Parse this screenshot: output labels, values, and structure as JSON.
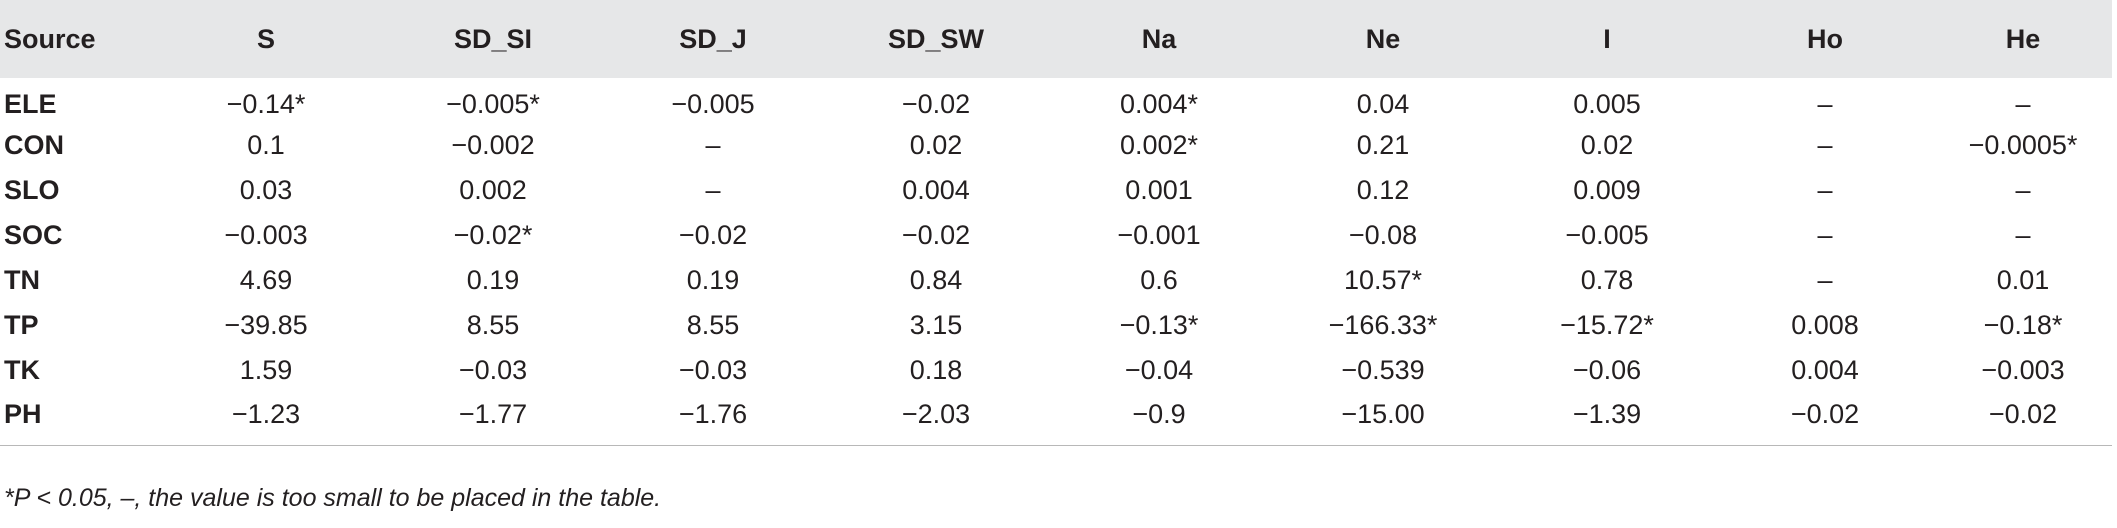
{
  "table": {
    "headers": [
      "Source",
      "S",
      "SD_SI",
      "SD_J",
      "SD_SW",
      "Na",
      "Ne",
      "I",
      "Ho",
      "He"
    ],
    "rows": [
      [
        "ELE",
        "−0.14*",
        "−0.005*",
        "−0.005",
        "−0.02",
        "0.004*",
        "0.04",
        "0.005",
        "–",
        "–"
      ],
      [
        "CON",
        "0.1",
        "−0.002",
        "–",
        "0.02",
        "0.002*",
        "0.21",
        "0.02",
        "–",
        "−0.0005*"
      ],
      [
        "SLO",
        "0.03",
        "0.002",
        "–",
        "0.004",
        "0.001",
        "0.12",
        "0.009",
        "–",
        "–"
      ],
      [
        "SOC",
        "−0.003",
        "−0.02*",
        "−0.02",
        "−0.02",
        "−0.001",
        "−0.08",
        "−0.005",
        "–",
        "–"
      ],
      [
        "TN",
        "4.69",
        "0.19",
        "0.19",
        "0.84",
        "0.6",
        "10.57*",
        "0.78",
        "–",
        "0.01"
      ],
      [
        "TP",
        "−39.85",
        "8.55",
        "8.55",
        "3.15",
        "−0.13*",
        "−166.33*",
        "−15.72*",
        "0.008",
        "−0.18*"
      ],
      [
        "TK",
        "1.59",
        "−0.03",
        "−0.03",
        "0.18",
        "−0.04",
        "−0.539",
        "−0.06",
        "0.004",
        "−0.003"
      ],
      [
        "PH",
        "−1.23",
        "−1.77",
        "−1.76",
        "−2.03",
        "−0.9",
        "−15.00",
        "−1.39",
        "−0.02",
        "−0.02"
      ]
    ]
  },
  "footnote": "*P < 0.05, –, the value is too small to be placed in the table."
}
